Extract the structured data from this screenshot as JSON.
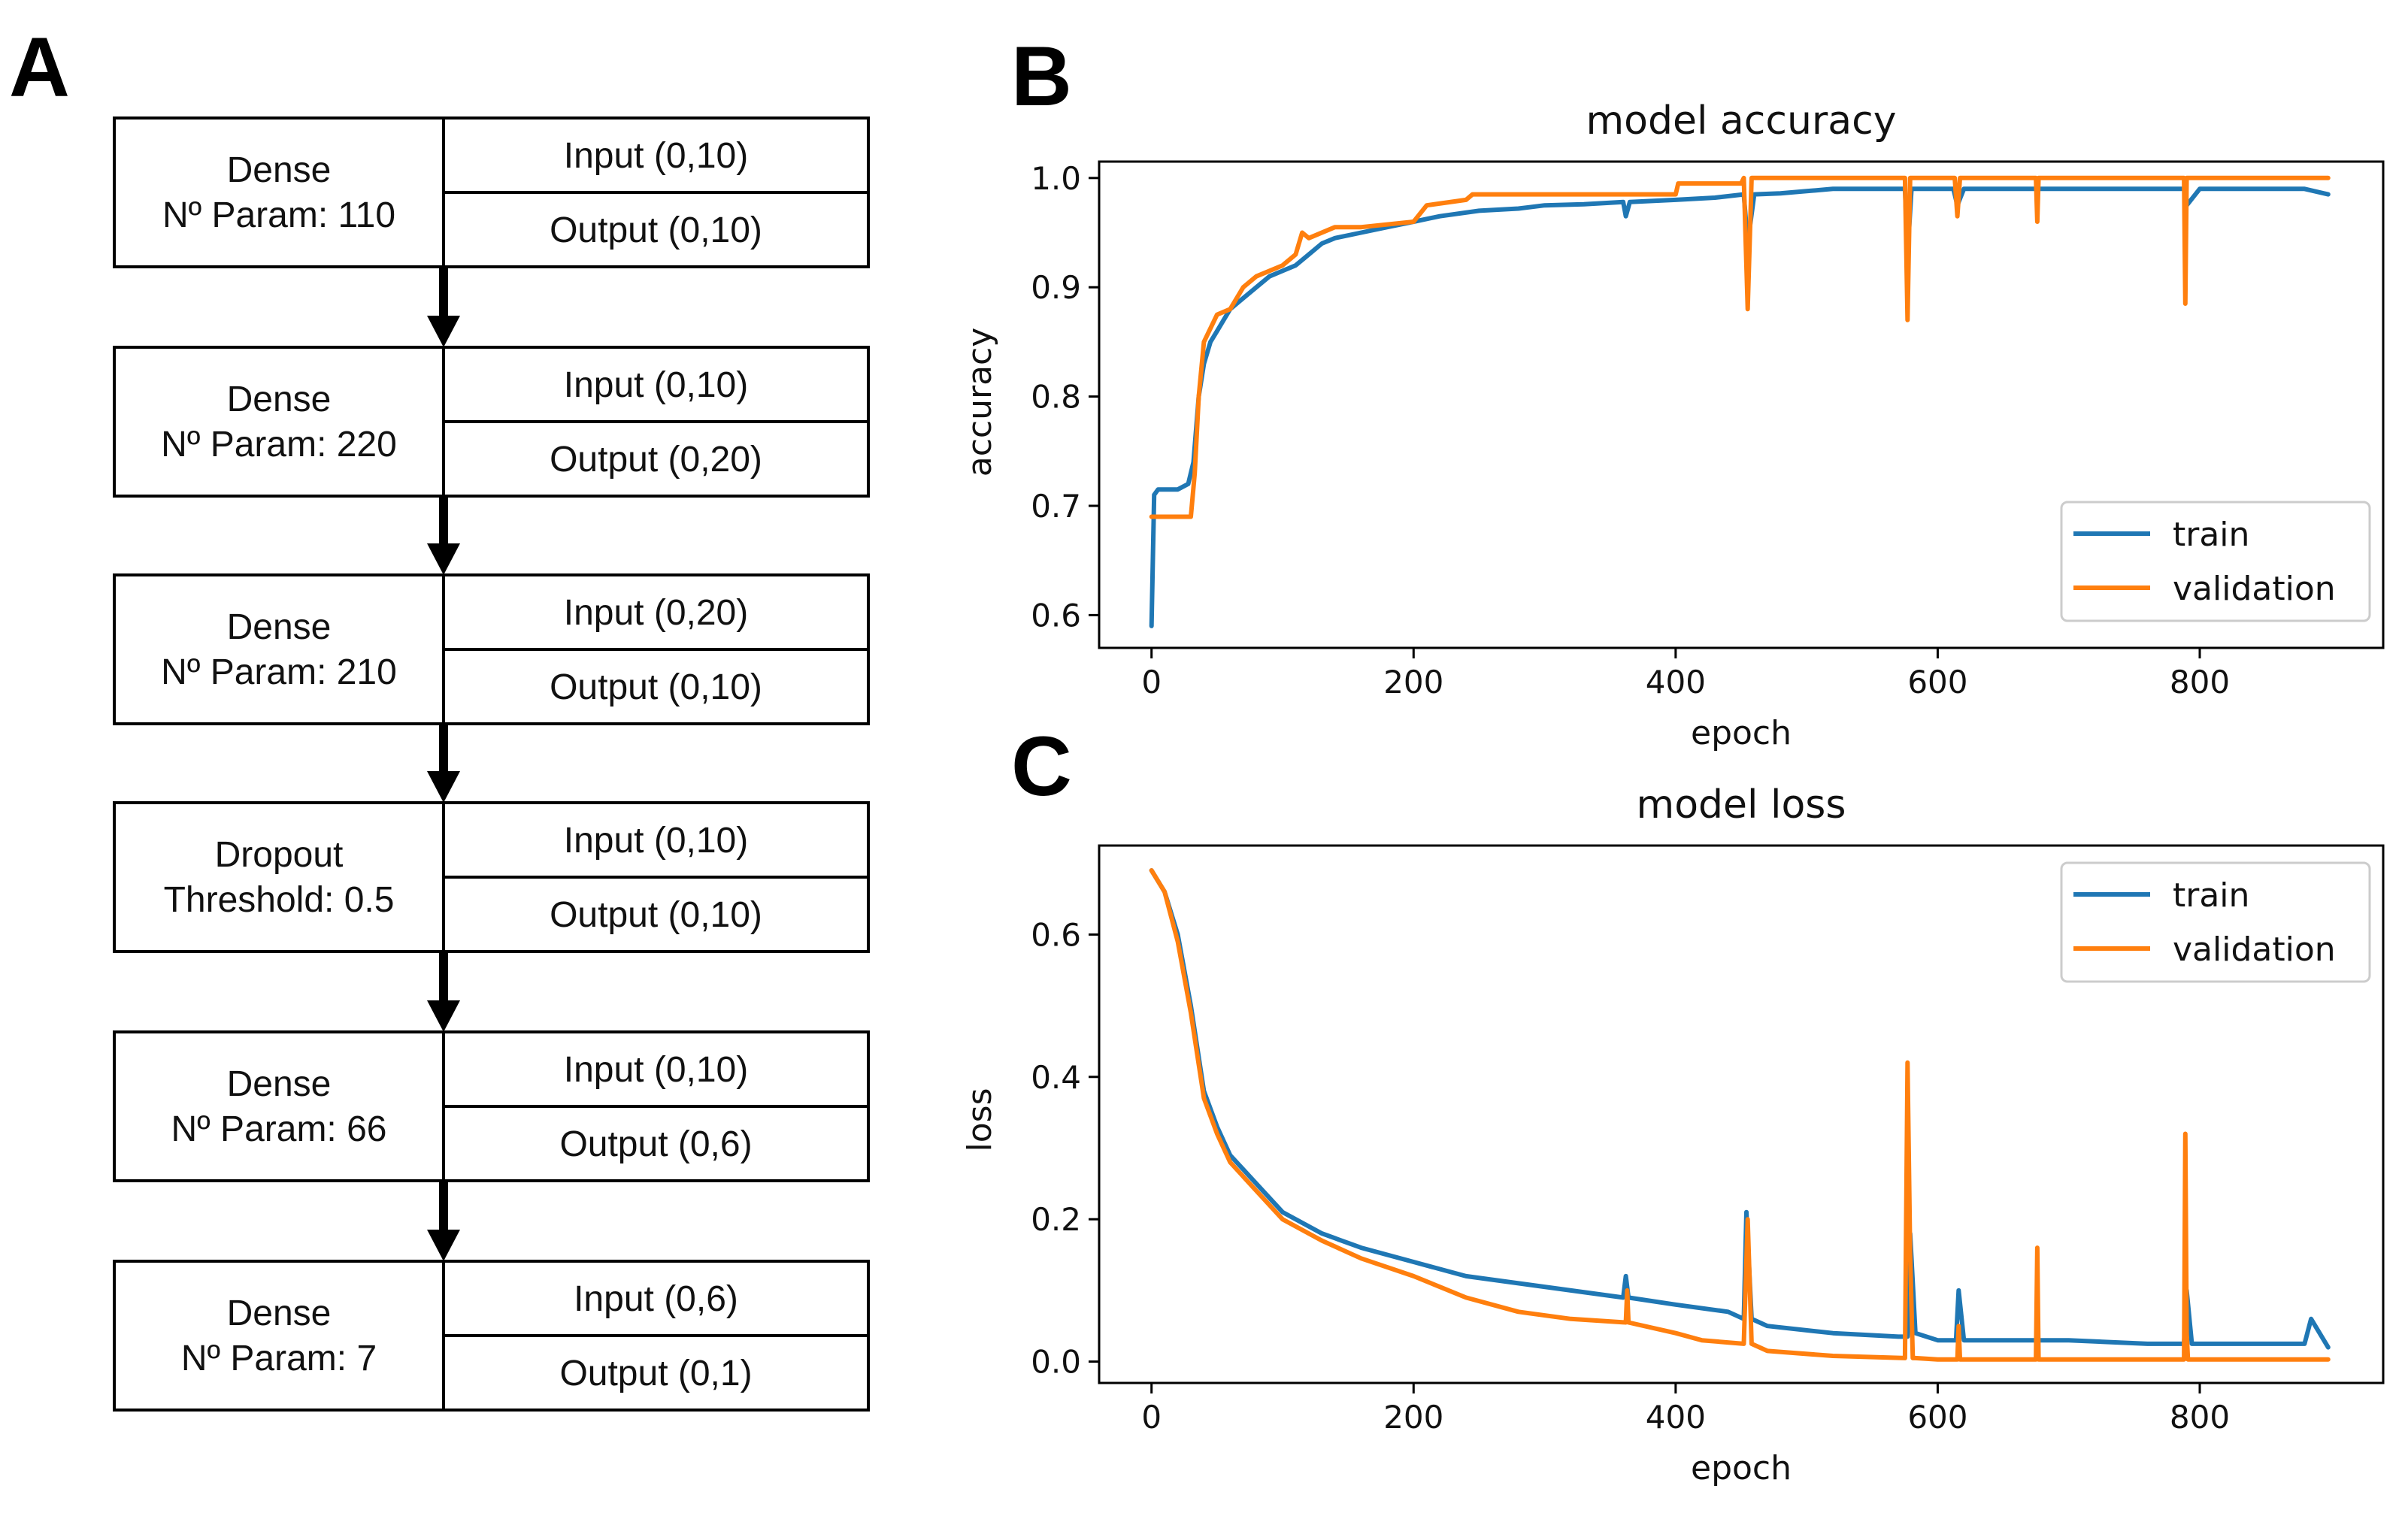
{
  "panels": {
    "a": "A",
    "b": "B",
    "c": "C"
  },
  "architecture": {
    "layers": [
      {
        "line1": "Dense",
        "line2": "Nº Param: 110",
        "input": "Input (0,10)",
        "output": "Output (0,10)"
      },
      {
        "line1": "Dense",
        "line2": "Nº Param: 220",
        "input": "Input (0,10)",
        "output": "Output (0,20)"
      },
      {
        "line1": "Dense",
        "line2": "Nº Param: 210",
        "input": "Input (0,20)",
        "output": "Output (0,10)"
      },
      {
        "line1": "Dropout",
        "line2": "Threshold: 0.5",
        "input": "Input (0,10)",
        "output": "Output (0,10)"
      },
      {
        "line1": "Dense",
        "line2": "Nº Param: 66",
        "input": "Input (0,10)",
        "output": "Output (0,6)"
      },
      {
        "line1": "Dense",
        "line2": "Nº Param: 7",
        "input": "Input (0,6)",
        "output": "Output (0,1)"
      }
    ]
  },
  "colors": {
    "train": "#1f77b4",
    "validation": "#ff7f0e"
  },
  "chart_data": [
    {
      "type": "line",
      "title": "model accuracy",
      "xlabel": "epoch",
      "ylabel": "accuracy",
      "xlim": [
        -40,
        940
      ],
      "ylim": [
        0.57,
        1.015
      ],
      "xticks": [
        0,
        200,
        400,
        600,
        800
      ],
      "yticks": [
        0.6,
        0.7,
        0.8,
        0.9,
        1.0
      ],
      "ytick_labels": [
        "0.6",
        "0.7",
        "0.8",
        "0.9",
        "1.0"
      ],
      "legend": "bottom-right",
      "series": [
        {
          "name": "train",
          "color": "#1f77b4",
          "x": [
            0,
            2,
            5,
            10,
            20,
            28,
            32,
            36,
            40,
            45,
            50,
            55,
            60,
            70,
            80,
            90,
            100,
            110,
            120,
            130,
            140,
            160,
            180,
            200,
            220,
            250,
            280,
            300,
            330,
            360,
            362,
            365,
            400,
            430,
            452,
            455,
            460,
            480,
            500,
            520,
            560,
            575,
            577,
            580,
            600,
            612,
            615,
            620,
            640,
            680,
            720,
            760,
            788,
            790,
            800,
            840,
            880,
            898
          ],
          "y": [
            0.59,
            0.71,
            0.715,
            0.715,
            0.715,
            0.72,
            0.74,
            0.8,
            0.83,
            0.85,
            0.86,
            0.87,
            0.88,
            0.89,
            0.9,
            0.91,
            0.915,
            0.92,
            0.93,
            0.94,
            0.945,
            0.95,
            0.955,
            0.96,
            0.965,
            0.97,
            0.972,
            0.975,
            0.976,
            0.978,
            0.965,
            0.978,
            0.98,
            0.982,
            0.985,
            0.94,
            0.985,
            0.986,
            0.988,
            0.99,
            0.99,
            0.99,
            0.93,
            0.99,
            0.99,
            0.99,
            0.975,
            0.99,
            0.99,
            0.99,
            0.99,
            0.99,
            0.99,
            0.975,
            0.99,
            0.99,
            0.99,
            0.985
          ]
        },
        {
          "name": "validation",
          "color": "#ff7f0e",
          "x": [
            0,
            1,
            30,
            33,
            36,
            40,
            50,
            60,
            70,
            80,
            100,
            110,
            115,
            120,
            140,
            160,
            200,
            210,
            240,
            245,
            400,
            402,
            450,
            452,
            455,
            458,
            460,
            500,
            575,
            577,
            579,
            581,
            583,
            600,
            613,
            615,
            617,
            619,
            675,
            676,
            677,
            678,
            788,
            789,
            790,
            791,
            898
          ],
          "y": [
            0.69,
            0.69,
            0.69,
            0.73,
            0.8,
            0.85,
            0.875,
            0.88,
            0.9,
            0.91,
            0.92,
            0.93,
            0.95,
            0.945,
            0.955,
            0.955,
            0.96,
            0.975,
            0.98,
            0.985,
            0.985,
            0.995,
            0.995,
            1.0,
            0.88,
            1.0,
            1.0,
            1.0,
            1.0,
            0.87,
            1.0,
            1.0,
            1.0,
            1.0,
            1.0,
            0.965,
            1.0,
            1.0,
            1.0,
            0.96,
            1.0,
            1.0,
            1.0,
            0.885,
            1.0,
            1.0,
            1.0
          ]
        }
      ]
    },
    {
      "type": "line",
      "title": "model loss",
      "xlabel": "epoch",
      "ylabel": "loss",
      "xlim": [
        -40,
        940
      ],
      "ylim": [
        -0.03,
        0.725
      ],
      "xticks": [
        0,
        200,
        400,
        600,
        800
      ],
      "yticks": [
        0.0,
        0.2,
        0.4,
        0.6
      ],
      "ytick_labels": [
        "0.0",
        "0.2",
        "0.4",
        "0.6"
      ],
      "legend": "top-right",
      "series": [
        {
          "name": "train",
          "color": "#1f77b4",
          "x": [
            0,
            10,
            20,
            30,
            40,
            50,
            60,
            80,
            100,
            130,
            160,
            200,
            240,
            280,
            320,
            360,
            362,
            364,
            400,
            440,
            452,
            454,
            458,
            470,
            520,
            570,
            577,
            579,
            583,
            600,
            614,
            616,
            620,
            640,
            700,
            760,
            788,
            790,
            794,
            800,
            860,
            880,
            885,
            898
          ],
          "y": [
            0.69,
            0.66,
            0.6,
            0.5,
            0.38,
            0.33,
            0.29,
            0.25,
            0.21,
            0.18,
            0.16,
            0.14,
            0.12,
            0.11,
            0.1,
            0.09,
            0.12,
            0.09,
            0.08,
            0.07,
            0.06,
            0.21,
            0.06,
            0.05,
            0.04,
            0.035,
            0.035,
            0.18,
            0.04,
            0.03,
            0.03,
            0.1,
            0.03,
            0.03,
            0.03,
            0.025,
            0.025,
            0.1,
            0.025,
            0.025,
            0.025,
            0.025,
            0.06,
            0.02
          ]
        },
        {
          "name": "validation",
          "color": "#ff7f0e",
          "x": [
            0,
            10,
            20,
            30,
            40,
            50,
            60,
            80,
            100,
            130,
            160,
            200,
            240,
            280,
            320,
            362,
            363,
            364,
            400,
            420,
            452,
            455,
            458,
            470,
            520,
            575,
            577,
            579,
            581,
            583,
            600,
            615,
            616,
            617,
            675,
            676,
            677,
            678,
            788,
            789,
            790,
            791,
            898
          ],
          "y": [
            0.69,
            0.66,
            0.59,
            0.49,
            0.37,
            0.32,
            0.28,
            0.24,
            0.2,
            0.17,
            0.145,
            0.12,
            0.09,
            0.07,
            0.06,
            0.055,
            0.1,
            0.055,
            0.04,
            0.03,
            0.025,
            0.2,
            0.025,
            0.015,
            0.008,
            0.005,
            0.42,
            0.15,
            0.005,
            0.005,
            0.003,
            0.003,
            0.05,
            0.003,
            0.003,
            0.16,
            0.003,
            0.003,
            0.003,
            0.32,
            0.04,
            0.003,
            0.003
          ]
        }
      ]
    }
  ]
}
